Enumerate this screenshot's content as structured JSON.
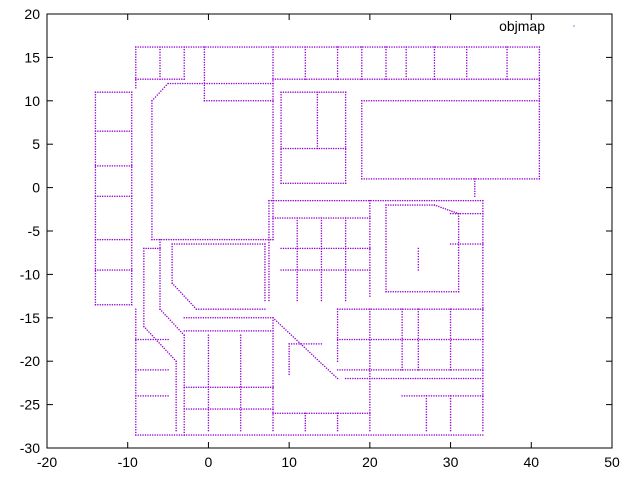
{
  "chart_data": {
    "type": "scatter",
    "title": "",
    "xlabel": "",
    "ylabel": "",
    "xlim": [
      -20,
      50
    ],
    "ylim": [
      -30,
      20
    ],
    "xticks": [
      -20,
      -10,
      0,
      10,
      20,
      30,
      40,
      50
    ],
    "yticks": [
      -30,
      -25,
      -20,
      -15,
      -10,
      -5,
      0,
      5,
      10,
      15,
      20
    ],
    "grid": false,
    "legend": {
      "position": "top-right"
    },
    "colors": {
      "series": "#9400d3",
      "frame": "#000000",
      "background": "#ffffff"
    },
    "series": [
      {
        "name": "objmap",
        "marker": "dot",
        "point_spacing": 0.3,
        "segments": [
          [
            -9,
            16.2,
            41,
            16.2
          ],
          [
            -9,
            16.2,
            -9,
            11.5
          ],
          [
            41,
            16.2,
            41,
            1
          ],
          [
            -14,
            11,
            -9.5,
            11
          ],
          [
            -14,
            11,
            -14,
            -13.5
          ],
          [
            -14,
            -13.5,
            -9.5,
            -13.5
          ],
          [
            -9.5,
            11,
            -9.5,
            -13.5
          ],
          [
            -14,
            6.5,
            -9.5,
            6.5
          ],
          [
            -14,
            2.5,
            -9.5,
            2.5
          ],
          [
            -14,
            -1,
            -9.5,
            -1
          ],
          [
            -14,
            -6,
            -9.5,
            -6
          ],
          [
            -14,
            -9.5,
            -9.5,
            -9.5
          ],
          [
            -5,
            12,
            8,
            12
          ],
          [
            -7,
            10,
            -7,
            -6
          ],
          [
            -7,
            -6,
            8,
            -6
          ],
          [
            8,
            12,
            8,
            -6
          ],
          [
            -5,
            12,
            -7,
            10
          ],
          [
            -9,
            12.5,
            -3,
            12.5
          ],
          [
            -6,
            16.2,
            -6,
            12.5
          ],
          [
            -3,
            16.2,
            -3,
            12.5
          ],
          [
            -0.5,
            16.2,
            -0.5,
            10
          ],
          [
            -0.5,
            10,
            8,
            10
          ],
          [
            8,
            16.2,
            8,
            12
          ],
          [
            8,
            12.5,
            41,
            12.5
          ],
          [
            12,
            16.2,
            12,
            12.5
          ],
          [
            16,
            16.2,
            16,
            12.5
          ],
          [
            19,
            16.2,
            19,
            12.5
          ],
          [
            22,
            16.2,
            22,
            12.5
          ],
          [
            24.5,
            16.2,
            24.5,
            12.5
          ],
          [
            28,
            16.2,
            28,
            12.5
          ],
          [
            32,
            16.2,
            32,
            12.5
          ],
          [
            37,
            16.2,
            37,
            12.5
          ],
          [
            9,
            11,
            17,
            11
          ],
          [
            9,
            11,
            9,
            0.5
          ],
          [
            9,
            0.5,
            17,
            0.5
          ],
          [
            17,
            11,
            17,
            0.5
          ],
          [
            9,
            4.5,
            17,
            4.5
          ],
          [
            13.5,
            11,
            13.5,
            4.5
          ],
          [
            19,
            10,
            41,
            10
          ],
          [
            19,
            10,
            19,
            1
          ],
          [
            19,
            1,
            41,
            1
          ],
          [
            33,
            1,
            33,
            -1
          ],
          [
            7.5,
            -1.5,
            34,
            -1.5
          ],
          [
            7.5,
            -1.5,
            7.5,
            -13
          ],
          [
            34,
            -1.5,
            34,
            -28
          ],
          [
            8,
            -3.5,
            20,
            -3.5
          ],
          [
            11,
            -3.5,
            11,
            -13
          ],
          [
            14,
            -3.5,
            14,
            -13
          ],
          [
            17,
            -3.5,
            17,
            -13
          ],
          [
            9,
            -7,
            20,
            -7
          ],
          [
            9,
            -9.5,
            20,
            -9.5
          ],
          [
            20,
            -1.5,
            20,
            -12.5
          ],
          [
            22,
            -2,
            28,
            -2
          ],
          [
            22,
            -2,
            22,
            -12
          ],
          [
            22,
            -12,
            31,
            -12
          ],
          [
            31,
            -3,
            31,
            -12
          ],
          [
            28,
            -2,
            31,
            -3
          ],
          [
            30,
            -3,
            34,
            -3
          ],
          [
            30,
            -6.5,
            34,
            -6.5
          ],
          [
            26,
            -7,
            26,
            -9.5
          ],
          [
            -8,
            -7,
            -6,
            -7
          ],
          [
            -8,
            -7,
            -8,
            -16
          ],
          [
            -6,
            -6,
            -6,
            -14
          ],
          [
            -4.5,
            -6.5,
            7,
            -6.5
          ],
          [
            -4.5,
            -6.5,
            -4.5,
            -11
          ],
          [
            7,
            -6.5,
            7,
            -13
          ],
          [
            -4.5,
            -11,
            -1.5,
            -14
          ],
          [
            -1.5,
            -14,
            7,
            -14
          ],
          [
            -6,
            -14,
            -3,
            -17
          ],
          [
            -8,
            -16,
            -4,
            -20
          ],
          [
            -4,
            -20,
            -4,
            -28
          ],
          [
            -3,
            -17,
            -3,
            -28.5
          ],
          [
            -9,
            -14,
            -9,
            -28.5
          ],
          [
            -9,
            -17.5,
            -5,
            -17.5
          ],
          [
            -9,
            -21,
            -5,
            -21
          ],
          [
            -9,
            -24,
            -5,
            -24
          ],
          [
            -9,
            -28.5,
            -3,
            -28.5
          ],
          [
            -3,
            -15,
            8,
            -15
          ],
          [
            -3,
            -16.5,
            8,
            -16.5
          ],
          [
            -3,
            -23,
            8,
            -23
          ],
          [
            -3,
            -25.5,
            8,
            -25.5
          ],
          [
            -3,
            -28.5,
            34,
            -28.5
          ],
          [
            0,
            -17,
            0,
            -28
          ],
          [
            4,
            -17,
            4,
            -28
          ],
          [
            8,
            -15,
            8,
            -28
          ],
          [
            8,
            -15,
            16,
            -22
          ],
          [
            10,
            -18,
            10,
            -21.5
          ],
          [
            10,
            -18,
            14,
            -18
          ],
          [
            16,
            -14,
            34,
            -14
          ],
          [
            16,
            -14,
            16,
            -20
          ],
          [
            20,
            -14,
            20,
            -28
          ],
          [
            24,
            -14,
            24,
            -21
          ],
          [
            26,
            -14,
            26,
            -21
          ],
          [
            30,
            -14,
            30,
            -21
          ],
          [
            16,
            -17.5,
            34,
            -17.5
          ],
          [
            16,
            -21,
            34,
            -21
          ],
          [
            17,
            -22,
            34,
            -22
          ],
          [
            24,
            -24,
            34,
            -24
          ],
          [
            27,
            -24,
            27,
            -28
          ],
          [
            30,
            -24,
            30,
            -28
          ],
          [
            8,
            -26,
            20,
            -26
          ],
          [
            12,
            -26,
            12,
            -28
          ],
          [
            16,
            -26,
            16,
            -28
          ]
        ]
      }
    ]
  }
}
